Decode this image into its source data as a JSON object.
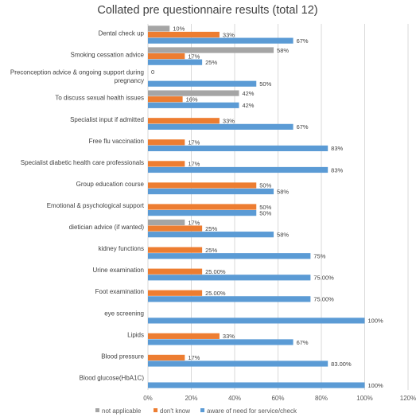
{
  "chart_data": {
    "type": "bar",
    "orientation": "horizontal",
    "title": "Collated pre questionnaire results (total 12)",
    "xlabel": "",
    "ylabel": "",
    "xlim": [
      0,
      1.2
    ],
    "x_ticks": [
      0,
      0.2,
      0.4,
      0.6,
      0.8,
      1.0,
      1.2
    ],
    "x_tick_labels": [
      "0%",
      "20%",
      "40%",
      "60%",
      "80%",
      "100%",
      "120%"
    ],
    "grid": "vertical",
    "legend_position": "bottom",
    "categories": [
      "Dental check up",
      "Smoking cessation advice",
      [
        "Preconception advice & ongoing support during",
        "pregnancy"
      ],
      "To discuss sexual health issues",
      "Specialist input if admitted",
      "Free flu vaccination",
      "Specialist diabetic health care professionals",
      "Group education course",
      "Emotional & psychological support",
      "dietician advice (if wanted)",
      "kidney functions",
      "Urine examination",
      "Foot examination",
      "eye screening",
      "Lipids",
      "Blood pressure",
      "Blood glucose(HbA1C)"
    ],
    "series": [
      {
        "name": "not applicable",
        "color": "#a5a5a5",
        "values": [
          0.1,
          0.58,
          0,
          0.42,
          null,
          null,
          null,
          null,
          null,
          0.17,
          null,
          null,
          null,
          null,
          null,
          null,
          null
        ],
        "labels": [
          "10%",
          "58%",
          "0",
          "42%",
          "",
          "",
          "",
          "",
          "",
          "17%",
          "",
          "",
          "",
          "",
          "",
          "",
          ""
        ]
      },
      {
        "name": "don't know",
        "color": "#ed7d31",
        "values": [
          0.33,
          0.17,
          null,
          0.16,
          0.33,
          0.17,
          0.17,
          0.5,
          0.5,
          0.25,
          0.25,
          0.25,
          0.25,
          null,
          0.33,
          0.17,
          null
        ],
        "labels": [
          "33%",
          "17%",
          "",
          "16%",
          "33%",
          "17%",
          "17%",
          "50%",
          "50%",
          "25%",
          "25%",
          "25.00%",
          "25.00%",
          "",
          "33%",
          "17%",
          ""
        ]
      },
      {
        "name": "aware of need for service/check",
        "color": "#5b9bd5",
        "values": [
          0.67,
          0.25,
          0.5,
          0.42,
          0.67,
          0.83,
          0.83,
          0.58,
          0.5,
          0.58,
          0.75,
          0.75,
          0.75,
          1.0,
          0.67,
          0.83,
          1.0
        ],
        "labels": [
          "67%",
          "25%",
          "50%",
          "42%",
          "67%",
          "83%",
          "83%",
          "58%",
          "50%",
          "58%",
          "75%",
          "75.00%",
          "75.00%",
          "100%",
          "67%",
          "83.00%",
          "100%"
        ]
      }
    ]
  }
}
